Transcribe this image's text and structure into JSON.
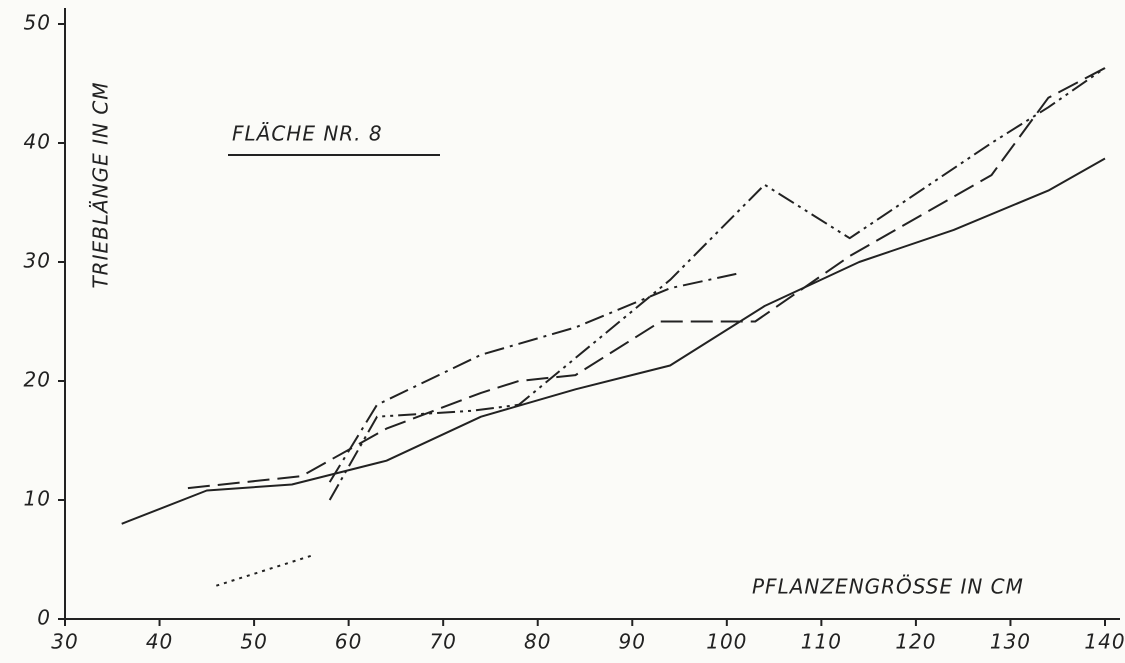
{
  "chart_data": {
    "type": "line",
    "title": "FLÄCHE NR. 8",
    "xlabel": "PFLANZENGRÖSSE IN CM",
    "ylabel": "TRIEBLÄNGE IN CM",
    "xlim": [
      30,
      140
    ],
    "ylim": [
      0,
      50
    ],
    "xticks": [
      30,
      40,
      50,
      60,
      70,
      80,
      90,
      100,
      110,
      120,
      130,
      140
    ],
    "yticks": [
      0,
      10,
      20,
      30,
      40,
      50
    ],
    "grid": false,
    "series": [
      {
        "color": "#222222",
        "dash": "solid",
        "x": [
          36,
          45,
          54,
          64,
          74,
          84,
          94,
          104,
          114,
          124,
          134,
          140
        ],
        "values": [
          8,
          10.8,
          11.3,
          13.3,
          17,
          19.3,
          21.3,
          26.3,
          30,
          32.7,
          36,
          38.7
        ]
      },
      {
        "color": "#222222",
        "dash": "long",
        "x": [
          43,
          55,
          64,
          74,
          78,
          84,
          93,
          103,
          113,
          128,
          134,
          140
        ],
        "values": [
          11,
          12,
          16,
          19,
          20,
          20.5,
          25,
          25,
          30.5,
          37.3,
          43.8,
          46.3
        ]
      },
      {
        "color": "#222222",
        "dash": "dashdot",
        "x": [
          58,
          63,
          74,
          84,
          94,
          101
        ],
        "values": [
          11.5,
          18,
          22.2,
          24.5,
          27.8,
          29
        ]
      },
      {
        "color": "#222222",
        "dash": "dashdotdot",
        "x": [
          58,
          63,
          73,
          78,
          94,
          104,
          113,
          128,
          134,
          140
        ],
        "values": [
          10,
          17,
          17.5,
          18,
          28.5,
          36.5,
          32,
          40,
          43,
          46.3
        ]
      },
      {
        "color": "#222222",
        "dash": "dotted",
        "x": [
          46,
          56
        ],
        "values": [
          2.8,
          5.3
        ]
      }
    ]
  }
}
